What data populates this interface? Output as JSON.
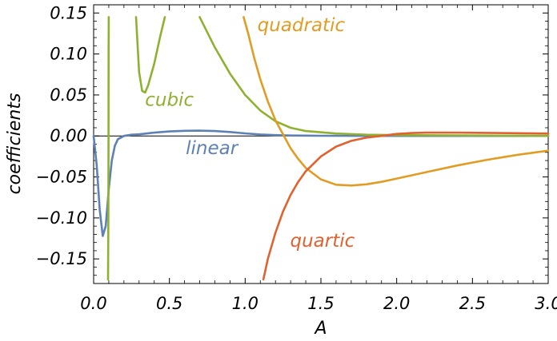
{
  "chart_data": {
    "type": "line",
    "title": "",
    "xlabel": "A",
    "ylabel": "coefficients",
    "xlim": [
      0.0,
      3.0
    ],
    "ylim": [
      -0.18,
      0.16
    ],
    "x_ticks": [
      "0.0",
      "0.5",
      "1.0",
      "1.5",
      "2.0",
      "2.5",
      "3.0"
    ],
    "x_tick_values": [
      0.0,
      0.5,
      1.0,
      1.5,
      2.0,
      2.5,
      3.0
    ],
    "y_ticks": [
      "0.15",
      "0.10",
      "0.05",
      "0.00",
      "−0.05",
      "−0.10",
      "−0.15"
    ],
    "y_tick_values": [
      0.15,
      0.1,
      0.05,
      0.0,
      -0.05,
      -0.1,
      -0.15
    ],
    "grid": false,
    "zero_line": true,
    "series": [
      {
        "name": "linear",
        "color": "#5e81b5",
        "x": [
          0.0,
          0.02,
          0.04,
          0.06,
          0.08,
          0.1,
          0.12,
          0.14,
          0.16,
          0.2,
          0.25,
          0.3,
          0.4,
          0.5,
          0.6,
          0.7,
          0.8,
          0.9,
          1.0,
          1.1,
          1.2,
          1.3,
          1.5,
          2.0,
          2.5,
          3.0
        ],
        "y": [
          0.0,
          -0.035,
          -0.09,
          -0.122,
          -0.11,
          -0.065,
          -0.03,
          -0.012,
          -0.004,
          0.0,
          0.0015,
          0.002,
          0.004,
          0.0055,
          0.0063,
          0.0065,
          0.006,
          0.0048,
          0.0032,
          0.0018,
          0.001,
          0.0005,
          0.0002,
          0.0,
          0.0,
          0.0
        ]
      },
      {
        "name": "cubic",
        "color": "#8fb131",
        "segments": [
          {
            "x": [
              0.095,
              0.097,
              0.098,
              0.099,
              0.1
            ],
            "y": [
              -0.175,
              -0.1,
              0.0,
              0.1,
              0.145
            ]
          },
          {
            "x": [
              0.28,
              0.3,
              0.32,
              0.34,
              0.36,
              0.4,
              0.44,
              0.47
            ],
            "y": [
              0.145,
              0.078,
              0.055,
              0.053,
              0.062,
              0.088,
              0.122,
              0.145
            ]
          },
          {
            "x": [
              0.7,
              0.8,
              0.9,
              1.0,
              1.1,
              1.2,
              1.3,
              1.4,
              1.6,
              1.8,
              2.0,
              2.5,
              3.0
            ],
            "y": [
              0.145,
              0.108,
              0.076,
              0.05,
              0.031,
              0.018,
              0.01,
              0.006,
              0.003,
              0.0015,
              0.001,
              0.0005,
              0.0
            ]
          }
        ]
      },
      {
        "name": "quadratic",
        "color": "#e19c24",
        "x": [
          0.99,
          1.02,
          1.06,
          1.1,
          1.15,
          1.2,
          1.25,
          1.3,
          1.35,
          1.4,
          1.5,
          1.6,
          1.7,
          1.8,
          1.9,
          2.0,
          2.2,
          2.4,
          2.6,
          2.8,
          3.0
        ],
        "y": [
          0.145,
          0.125,
          0.095,
          0.069,
          0.042,
          0.019,
          0.002,
          -0.015,
          -0.028,
          -0.039,
          -0.053,
          -0.0595,
          -0.0605,
          -0.059,
          -0.056,
          -0.052,
          -0.044,
          -0.036,
          -0.029,
          -0.023,
          -0.018
        ]
      },
      {
        "name": "quartic",
        "color": "#e0622f",
        "x": [
          1.12,
          1.15,
          1.2,
          1.25,
          1.3,
          1.35,
          1.4,
          1.5,
          1.6,
          1.7,
          1.8,
          1.9,
          2.0,
          2.1,
          2.2,
          2.4,
          2.6,
          2.8,
          3.0
        ],
        "y": [
          -0.175,
          -0.15,
          -0.118,
          -0.092,
          -0.072,
          -0.056,
          -0.043,
          -0.025,
          -0.013,
          -0.006,
          -0.002,
          0.0,
          0.0025,
          0.0035,
          0.004,
          0.004,
          0.0037,
          0.0033,
          0.003
        ]
      }
    ],
    "annotations": [
      {
        "text": "linear",
        "series": "linear",
        "x": 0.78,
        "y": -0.022
      },
      {
        "text": "cubic",
        "series": "cubic",
        "x": 0.5,
        "y": 0.037
      },
      {
        "text": "quadratic",
        "series": "quadratic",
        "x": 1.37,
        "y": 0.128
      },
      {
        "text": "quartic",
        "series": "quartic",
        "x": 1.51,
        "y": -0.135
      }
    ]
  }
}
